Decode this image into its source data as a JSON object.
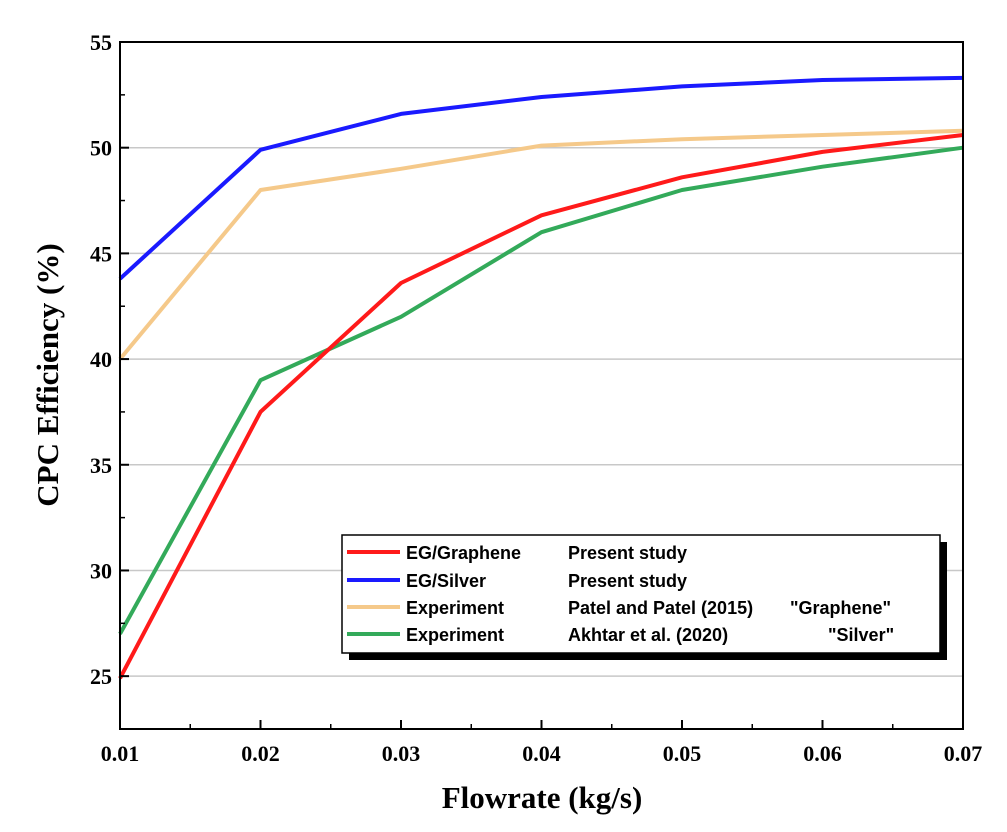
{
  "chart_data": {
    "type": "line",
    "xlabel": "Flowrate (kg/s)",
    "ylabel": "CPC Efficiency (%)",
    "xlim": [
      0.01,
      0.07
    ],
    "ylim": [
      22.5,
      55
    ],
    "xticks": [
      "0.01",
      "0.02",
      "0.03",
      "0.04",
      "0.05",
      "0.06",
      "0.07"
    ],
    "yticks": [
      "25",
      "30",
      "35",
      "40",
      "45",
      "50",
      "55"
    ],
    "grid": true,
    "legend_position": "lower-right",
    "x": [
      0.01,
      0.02,
      0.03,
      0.04,
      0.05,
      0.06,
      0.07
    ],
    "series": [
      {
        "name": "EG/Graphene",
        "source": "Present study",
        "color": "#ff1a1a",
        "values": [
          24.9,
          37.5,
          43.6,
          46.8,
          48.6,
          49.8,
          50.6
        ]
      },
      {
        "name": "EG/Silver",
        "source": "Present study",
        "color": "#1a1aff",
        "values": [
          43.8,
          49.9,
          51.6,
          52.4,
          52.9,
          53.2,
          53.3
        ]
      },
      {
        "name": "Experiment",
        "source": "Patel and Patel (2015)",
        "note": "\"Graphene\"",
        "color": "#f5c98a",
        "values": [
          40.0,
          48.0,
          49.0,
          50.1,
          50.4,
          50.6,
          50.8
        ]
      },
      {
        "name": "Experiment",
        "source": "Akhtar et al. (2020)",
        "note": "\"Silver\"",
        "color": "#33aa5a",
        "values": [
          27.0,
          39.0,
          42.0,
          46.0,
          48.0,
          49.1,
          50.0
        ]
      }
    ]
  }
}
